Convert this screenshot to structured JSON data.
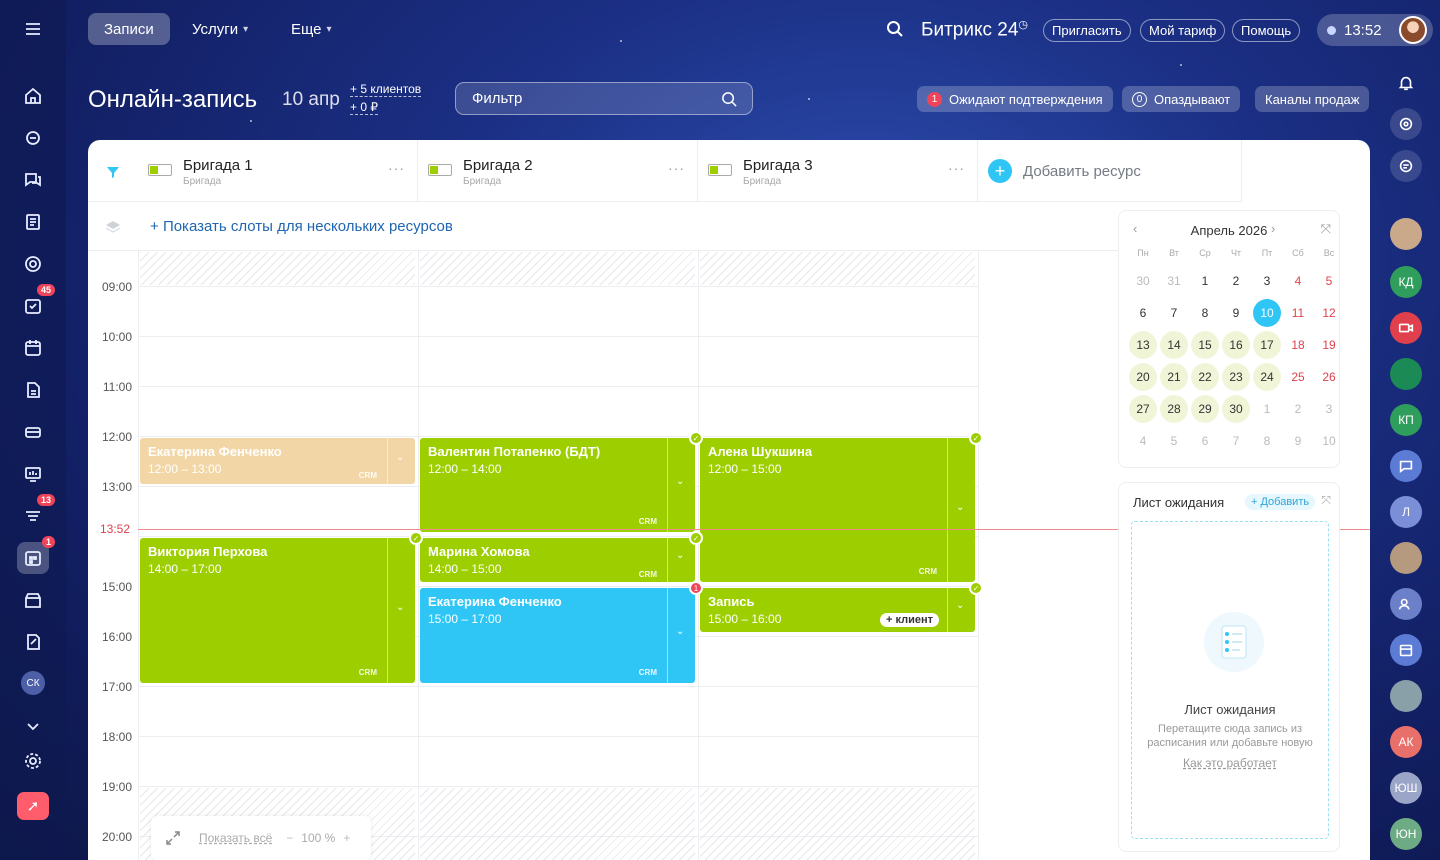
{
  "topbar": {
    "nav": [
      {
        "label": "Записи"
      },
      {
        "label": "Услуги"
      },
      {
        "label": "Еще"
      }
    ],
    "brand": "Битрикс 24",
    "buttons": {
      "invite": "Пригласить",
      "tariff": "Мой тариф",
      "help": "Помощь"
    },
    "time": "13:52"
  },
  "header": {
    "title": "Онлайн-запись",
    "date": "10 апр",
    "stat_clients": "5 клиентов",
    "stat_sum": "0 ₽",
    "filter_placeholder": "Фильтр",
    "pills": {
      "awaiting_count": "1",
      "awaiting": "Ожидают подтверждения",
      "late_count": "0",
      "late": "Опаздывают",
      "channels": "Каналы продаж"
    }
  },
  "sidebar": {
    "tasks_badge": "45",
    "feed_badge": "13",
    "booking_badge": "1",
    "user_initials": "СК"
  },
  "right_sidebar": {
    "contacts": [
      "КД",
      "КП",
      "Л",
      "АК",
      "ЮШ",
      "ЮН"
    ]
  },
  "resources": [
    {
      "name": "Бригада 1",
      "type": "Бригада"
    },
    {
      "name": "Бригада 2",
      "type": "Бригада"
    },
    {
      "name": "Бригада 3",
      "type": "Бригада"
    }
  ],
  "add_resource": "Добавить ресурс",
  "show_slots": "Показать слоты для нескольких ресурсов",
  "times": [
    "09:00",
    "10:00",
    "11:00",
    "12:00",
    "13:00",
    "15:00",
    "16:00",
    "17:00",
    "18:00",
    "19:00",
    "20:00"
  ],
  "now_label": "13:52",
  "events": {
    "e1": {
      "name": "Екатерина Фенченко",
      "time": "12:00 – 13:00"
    },
    "e2": {
      "name": "Валентин Потапенко (БДТ)",
      "time": "12:00 – 14:00"
    },
    "e3": {
      "name": "Алена Шукшина",
      "time": "12:00 – 15:00"
    },
    "e4": {
      "name": "Виктория Перхова",
      "time": "14:00 – 17:00"
    },
    "e5": {
      "name": "Марина Хомова",
      "time": "14:00 – 15:00"
    },
    "e6": {
      "name": "Екатерина Фенченко",
      "time": "15:00 – 17:00"
    },
    "e7": {
      "name": "Запись",
      "time": "15:00 – 16:00",
      "action": "+ клиент"
    }
  },
  "crm_label": "CRM",
  "calendar": {
    "title": "Апрель 2026",
    "weekdays": [
      "Пн",
      "Вт",
      "Ср",
      "Чт",
      "Пт",
      "Сб",
      "Вс"
    ],
    "weeks": [
      [
        "30",
        "31",
        "1",
        "2",
        "3",
        "4",
        "5"
      ],
      [
        "6",
        "7",
        "8",
        "9",
        "10",
        "11",
        "12"
      ],
      [
        "13",
        "14",
        "15",
        "16",
        "17",
        "18",
        "19"
      ],
      [
        "20",
        "21",
        "22",
        "23",
        "24",
        "25",
        "26"
      ],
      [
        "27",
        "28",
        "29",
        "30",
        "1",
        "2",
        "3"
      ],
      [
        "4",
        "5",
        "6",
        "7",
        "8",
        "9",
        "10"
      ]
    ],
    "today": "10"
  },
  "waitlist": {
    "title": "Лист ожидания",
    "add": "+ Добавить",
    "name": "Лист ожидания",
    "desc": "Перетащите сюда запись из расписания или добавьте новую",
    "how": "Как это работает"
  },
  "zoom": {
    "show_all": "Показать всё",
    "level": "100 %"
  },
  "colors": {
    "green": "#9dcf00",
    "blue": "#2fc6f6",
    "pending": "#f2d6a6",
    "now": "#e0404c"
  }
}
